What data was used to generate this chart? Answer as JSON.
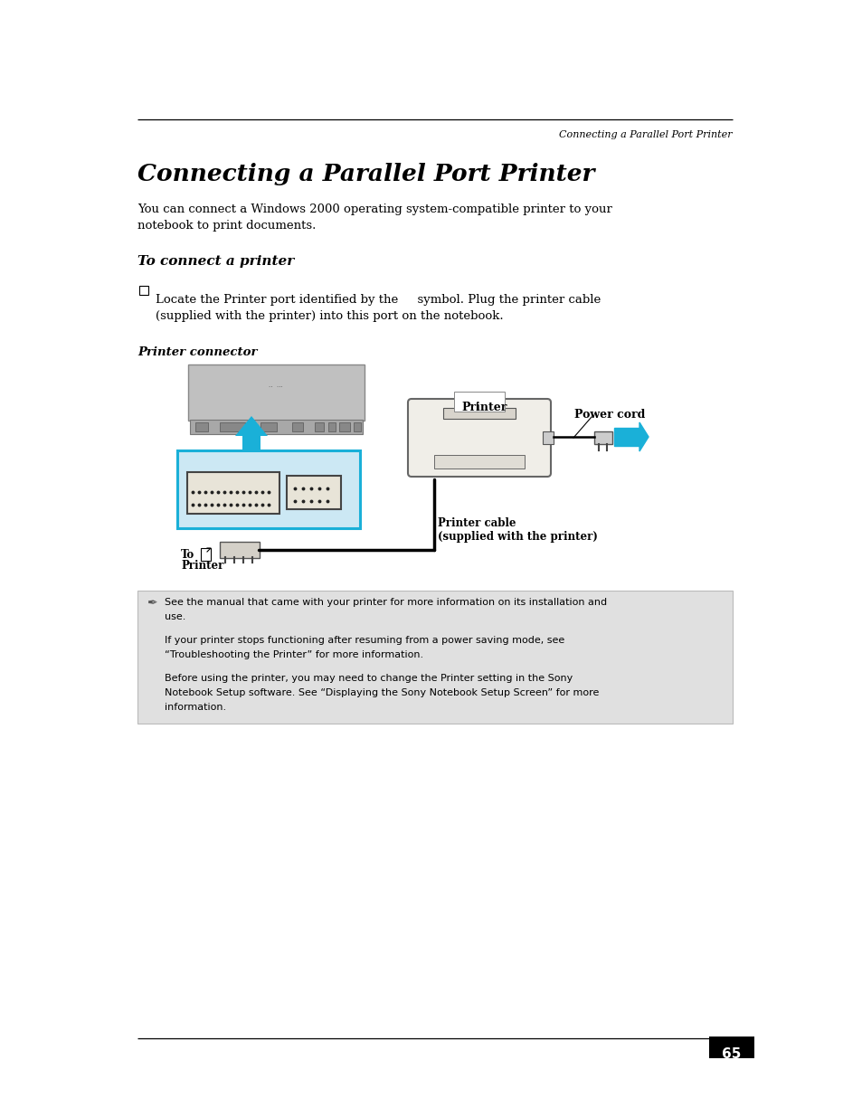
{
  "page_title_right": "Connecting a Parallel Port Printer",
  "main_title": "Connecting a Parallel Port Printer",
  "body_text1": "You can connect a Windows 2000 operating system-compatible printer to your",
  "body_text2": "notebook to print documents.",
  "section_title": "To connect a printer",
  "bullet_text1": "Locate the Printer port identified by the     symbol. Plug the printer cable",
  "bullet_text2": "(supplied with the printer) into this port on the notebook.",
  "diagram_title": "Printer connector",
  "label_printer": "Printer",
  "label_power_cord": "Power cord",
  "label_printer_cable": "Printer cable",
  "label_printer_cable2": "(supplied with the printer)",
  "label_to_printer": "To",
  "label_to_printer2": "Printer",
  "note_text1a": "See the manual that came with your printer for more information on its installation and",
  "note_text1b": "use.",
  "note_text2a": "If your printer stops functioning after resuming from a power saving mode, see",
  "note_text2b": "“Troubleshooting the Printer” for more information.",
  "note_text3a": "Before using the printer, you may need to change the Printer setting in the Sony",
  "note_text3b": "Notebook Setup software. See “Displaying the Sony Notebook Setup Screen” for more",
  "note_text3c": "information.",
  "page_number": "65",
  "bg_color": "#ffffff",
  "note_bg_color": "#e0e0e0",
  "cyan_color": "#1ab0d8",
  "black_color": "#000000"
}
